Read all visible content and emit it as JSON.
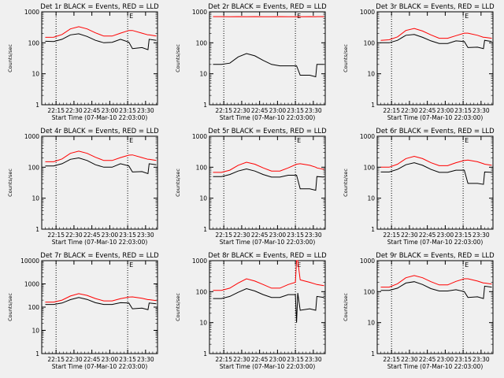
{
  "figure": {
    "start_time_label": "Start Time (07-Mar-10 22:03:00)",
    "ylabel": "Counts/sec",
    "x_ticks": [
      "22:15",
      "22:30",
      "22:45",
      "23:00",
      "23:15",
      "23:30"
    ],
    "y_ticks": [
      "1",
      "10",
      "100",
      "1000"
    ],
    "y_ticks_det7": [
      "1",
      "10",
      "100",
      "1000",
      "10000"
    ],
    "markers": [
      {
        "label": "E",
        "minute": 75
      }
    ],
    "colors": {
      "events": "#000000",
      "lld": "#ff0000",
      "background": "#f0f0f0"
    }
  },
  "chart_data": [
    {
      "type": "line",
      "title": "Det 1r BLACK = Events, RED = LLD",
      "x": [
        3,
        10,
        17,
        24,
        31,
        38,
        45,
        52,
        59,
        66,
        73,
        76,
        84,
        89,
        90,
        96
      ],
      "ylim": [
        1,
        1000
      ],
      "yscale": "log",
      "series": [
        {
          "name": "Events",
          "color": "#000000",
          "values": [
            112,
            110,
            130,
            180,
            195,
            160,
            120,
            100,
            104,
            130,
            105,
            65,
            70,
            60,
            130,
            120
          ]
        },
        {
          "name": "LLD",
          "color": "#ff0000",
          "values": [
            150,
            152,
            185,
            280,
            330,
            280,
            210,
            165,
            165,
            205,
            250,
            250,
            205,
            180,
            180,
            165
          ]
        }
      ]
    },
    {
      "type": "line",
      "title": "Det 2r BLACK = Events, RED = LLD",
      "x": [
        3,
        10,
        17,
        24,
        31,
        38,
        45,
        52,
        59,
        66,
        73,
        76,
        84,
        89,
        90,
        96
      ],
      "ylim": [
        1,
        1000
      ],
      "yscale": "log",
      "series": [
        {
          "name": "Events",
          "color": "#000000",
          "values": [
            20,
            20,
            22,
            35,
            45,
            38,
            27,
            20,
            18,
            18,
            18,
            9,
            9,
            8,
            20,
            20
          ]
        },
        {
          "name": "LLD",
          "color": "#ff0000",
          "values": [
            700,
            700,
            690,
            700,
            690,
            700,
            690,
            690,
            700,
            690,
            690,
            690,
            700,
            690,
            700,
            700
          ]
        }
      ]
    },
    {
      "type": "line",
      "title": "Det 3r BLACK = Events, RED = LLD",
      "x": [
        3,
        10,
        17,
        24,
        31,
        38,
        45,
        52,
        59,
        66,
        73,
        76,
        84,
        89,
        90,
        96
      ],
      "ylim": [
        1,
        1000
      ],
      "yscale": "log",
      "series": [
        {
          "name": "Events",
          "color": "#000000",
          "values": [
            100,
            100,
            120,
            175,
            185,
            150,
            115,
            95,
            95,
            115,
            110,
            70,
            72,
            65,
            120,
            110
          ]
        },
        {
          "name": "LLD",
          "color": "#ff0000",
          "values": [
            120,
            125,
            155,
            250,
            290,
            240,
            180,
            140,
            140,
            170,
            205,
            205,
            175,
            150,
            150,
            140
          ]
        }
      ]
    },
    {
      "type": "line",
      "title": "Det 4r BLACK = Events, RED = LLD",
      "x": [
        3,
        10,
        17,
        24,
        31,
        38,
        45,
        52,
        59,
        66,
        73,
        76,
        84,
        89,
        90,
        96
      ],
      "ylim": [
        1,
        1000
      ],
      "yscale": "log",
      "series": [
        {
          "name": "Events",
          "color": "#000000",
          "values": [
            110,
            110,
            130,
            180,
            200,
            165,
            120,
            100,
            100,
            130,
            110,
            70,
            72,
            62,
            130,
            120
          ]
        },
        {
          "name": "LLD",
          "color": "#ff0000",
          "values": [
            150,
            150,
            185,
            280,
            330,
            280,
            210,
            165,
            165,
            205,
            245,
            250,
            205,
            180,
            180,
            165
          ]
        }
      ]
    },
    {
      "type": "line",
      "title": "Det 5r BLACK = Events, RED = LLD",
      "x": [
        3,
        10,
        17,
        24,
        31,
        38,
        45,
        52,
        59,
        66,
        73,
        76,
        84,
        89,
        90,
        96
      ],
      "ylim": [
        1,
        1000
      ],
      "yscale": "log",
      "series": [
        {
          "name": "Events",
          "color": "#000000",
          "values": [
            50,
            50,
            58,
            75,
            88,
            75,
            58,
            48,
            48,
            55,
            55,
            20,
            20,
            18,
            50,
            48
          ]
        },
        {
          "name": "LLD",
          "color": "#ff0000",
          "values": [
            68,
            68,
            80,
            115,
            145,
            125,
            95,
            75,
            75,
            95,
            125,
            130,
            115,
            100,
            95,
            85
          ]
        }
      ]
    },
    {
      "type": "line",
      "title": "Det 6r BLACK = Events, RED = LLD",
      "x": [
        3,
        10,
        17,
        24,
        31,
        38,
        45,
        52,
        59,
        66,
        73,
        76,
        84,
        89,
        90,
        96
      ],
      "ylim": [
        1,
        1000
      ],
      "yscale": "log",
      "series": [
        {
          "name": "Events",
          "color": "#000000",
          "values": [
            70,
            70,
            85,
            120,
            140,
            115,
            85,
            68,
            68,
            80,
            80,
            30,
            30,
            28,
            70,
            68
          ]
        },
        {
          "name": "LLD",
          "color": "#ff0000",
          "values": [
            100,
            100,
            125,
            190,
            225,
            190,
            140,
            112,
            112,
            140,
            165,
            170,
            150,
            130,
            125,
            115
          ]
        }
      ]
    },
    {
      "type": "line",
      "title": "Det 7r BLACK = Events, RED = LLD",
      "x": [
        3,
        10,
        17,
        24,
        31,
        38,
        45,
        52,
        59,
        66,
        73,
        76,
        84,
        89,
        90,
        96
      ],
      "ylim": [
        1,
        10000
      ],
      "yscale": "log",
      "series": [
        {
          "name": "Events",
          "color": "#000000",
          "values": [
            130,
            130,
            150,
            210,
            260,
            215,
            155,
            130,
            130,
            155,
            150,
            85,
            90,
            78,
            150,
            140
          ]
        },
        {
          "name": "LLD",
          "color": "#ff0000",
          "values": [
            165,
            165,
            200,
            300,
            380,
            320,
            235,
            185,
            185,
            230,
            270,
            275,
            240,
            210,
            210,
            190
          ]
        }
      ]
    },
    {
      "type": "line",
      "title": "Det 8r BLACK = Events, RED = LLD",
      "x": [
        3,
        10,
        17,
        24,
        31,
        38,
        45,
        52,
        59,
        66,
        72,
        73,
        74,
        76,
        84,
        89,
        90,
        96
      ],
      "ylim": [
        1,
        1000
      ],
      "yscale": "log",
      "series": [
        {
          "name": "Events",
          "color": "#000000",
          "values": [
            60,
            60,
            70,
            95,
            125,
            105,
            80,
            65,
            65,
            80,
            80,
            10,
            90,
            25,
            28,
            25,
            70,
            65
          ]
        },
        {
          "name": "LLD",
          "color": "#ff0000",
          "values": [
            110,
            110,
            130,
            190,
            260,
            220,
            170,
            130,
            130,
            170,
            200,
            1000,
            1000,
            240,
            200,
            175,
            170,
            155
          ]
        }
      ]
    },
    {
      "type": "line",
      "title": "Det 9r BLACK = Events, RED = LLD",
      "x": [
        3,
        10,
        17,
        24,
        31,
        38,
        45,
        52,
        59,
        66,
        73,
        76,
        84,
        89,
        90,
        96
      ],
      "ylim": [
        1,
        1000
      ],
      "yscale": "log",
      "series": [
        {
          "name": "Events",
          "color": "#000000",
          "values": [
            110,
            110,
            130,
            190,
            210,
            170,
            125,
            105,
            105,
            115,
            100,
            65,
            68,
            60,
            150,
            140
          ]
        },
        {
          "name": "LLD",
          "color": "#ff0000",
          "values": [
            140,
            140,
            180,
            280,
            330,
            280,
            210,
            165,
            165,
            215,
            260,
            260,
            220,
            190,
            190,
            175
          ]
        }
      ]
    }
  ]
}
